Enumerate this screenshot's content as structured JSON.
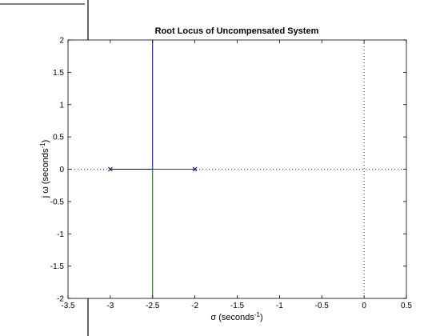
{
  "chart_data": {
    "type": "line",
    "title": "Root Locus of Uncompensated System",
    "xlabel": {
      "base": "σ (seconds",
      "sup": "-1",
      "close": ")"
    },
    "ylabel": {
      "base": "j ω (seconds",
      "sup": "-1",
      "close": ")"
    },
    "xlim": [
      -3.5,
      0.5
    ],
    "ylim": [
      -2,
      2
    ],
    "xticks": [
      -3.5,
      -3,
      -2.5,
      -2,
      -1.5,
      -1,
      -0.5,
      0,
      0.5
    ],
    "xtick_labels": [
      "-3.5",
      "-3",
      "-2.5",
      "-2",
      "-1.5",
      "-1",
      "-0.5",
      "0",
      "0.5"
    ],
    "yticks": [
      -2,
      -1.5,
      -1,
      -0.5,
      0,
      0.5,
      1,
      1.5,
      2
    ],
    "ytick_labels": [
      "-2",
      "-1.5",
      "-1",
      "-0.5",
      "0",
      "0.5",
      "1",
      "1.5",
      "2"
    ],
    "grid": false,
    "series": [
      {
        "color": "#00007f",
        "x": [
          -3,
          -2.5,
          -2.5
        ],
        "y": [
          0,
          0,
          2
        ]
      },
      {
        "color": "#006600",
        "x": [
          -2,
          -2.5,
          -2.5
        ],
        "y": [
          0,
          0,
          -2
        ]
      }
    ],
    "poles": {
      "x": [
        -3,
        -2
      ],
      "y": [
        0,
        0
      ],
      "color": "#00007f",
      "marker": "x"
    },
    "reference_lines": {
      "real_axis": 0,
      "imag_axis": 0,
      "style": "dotted",
      "color": "#000000"
    }
  },
  "figure_artifacts": {
    "black_line_color": "#000000"
  }
}
